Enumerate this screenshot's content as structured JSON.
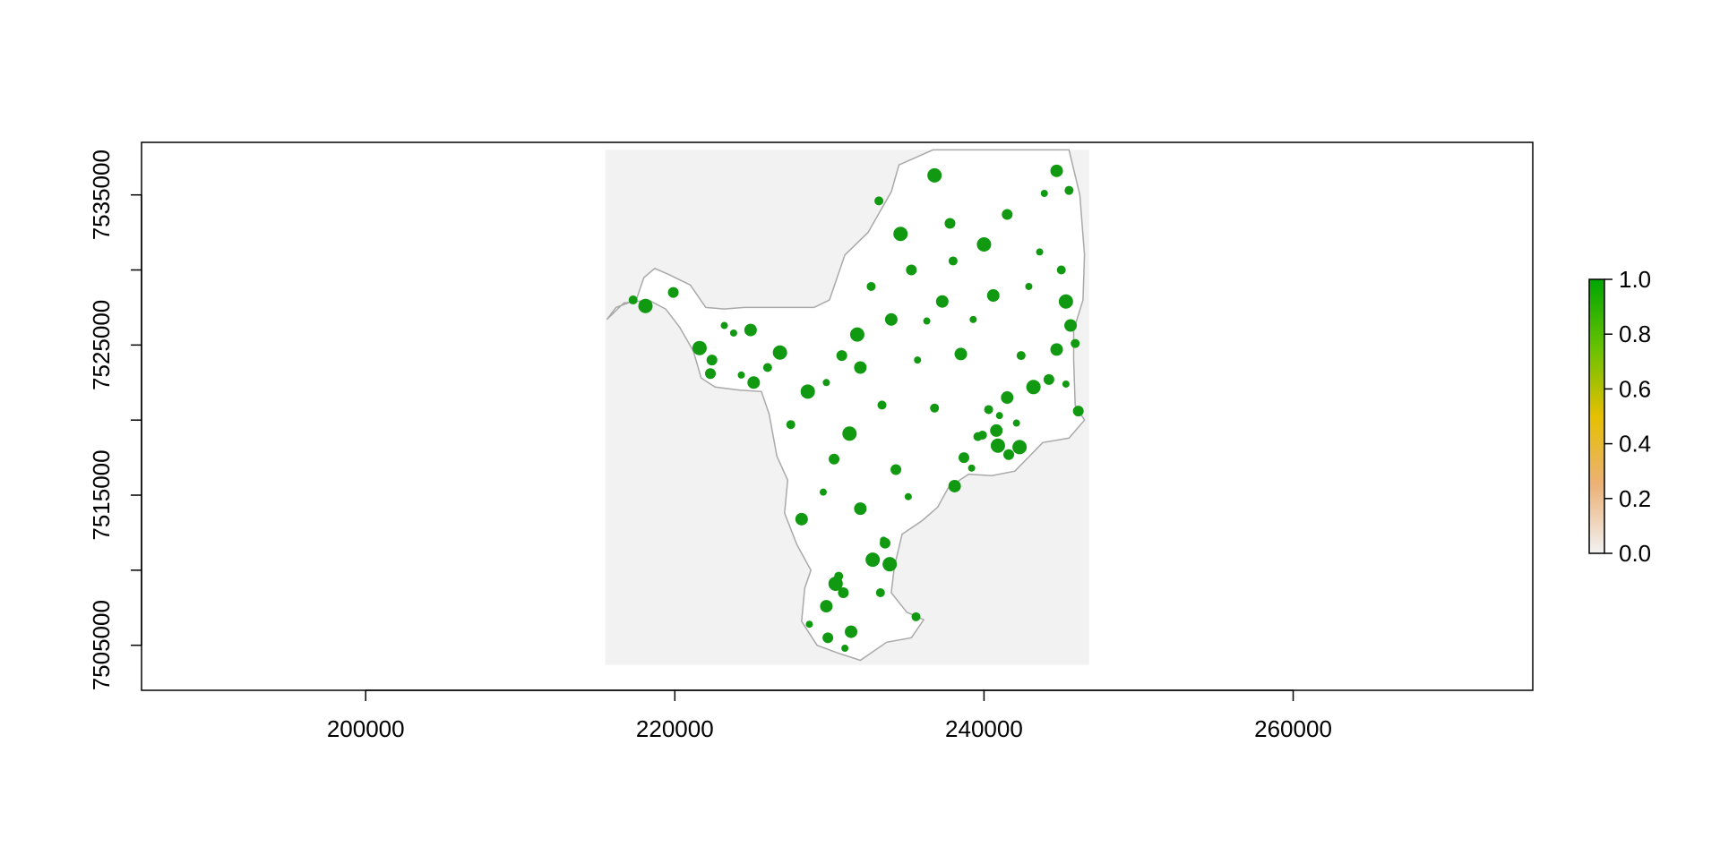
{
  "chart_data": {
    "type": "heatmap",
    "title": "",
    "xlabel": "",
    "ylabel": "",
    "xlim": [
      185500,
      275500
    ],
    "ylim": [
      7502000,
      7538500
    ],
    "x_ticks": [
      {
        "value": 200000,
        "label": "200000"
      },
      {
        "value": 220000,
        "label": "220000"
      },
      {
        "value": 240000,
        "label": "240000"
      },
      {
        "value": 260000,
        "label": "260000"
      }
    ],
    "y_ticks": [
      {
        "value": 7505000,
        "label": "7505000"
      },
      {
        "value": 7510000,
        "label": ""
      },
      {
        "value": 7515000,
        "label": "7515000"
      },
      {
        "value": 7520000,
        "label": ""
      },
      {
        "value": 7525000,
        "label": "7525000"
      },
      {
        "value": 7530000,
        "label": ""
      },
      {
        "value": 7535000,
        "label": "7535000"
      }
    ],
    "raster_extent": {
      "x": [
        215500,
        246800
      ],
      "y": [
        7503700,
        7538000
      ],
      "background_color": "#f2f2f2"
    },
    "boundary_outline": [
      [
        236700,
        7538000
      ],
      [
        245500,
        7538000
      ],
      [
        246200,
        7535000
      ],
      [
        246500,
        7531000
      ],
      [
        246400,
        7528000
      ],
      [
        245800,
        7526000
      ],
      [
        245800,
        7524000
      ],
      [
        245900,
        7521000
      ],
      [
        246500,
        7520000
      ],
      [
        245500,
        7518800
      ],
      [
        243800,
        7518500
      ],
      [
        242000,
        7516600
      ],
      [
        240500,
        7516300
      ],
      [
        239000,
        7516400
      ],
      [
        237700,
        7515500
      ],
      [
        237000,
        7514200
      ],
      [
        236000,
        7513300
      ],
      [
        234700,
        7512400
      ],
      [
        234200,
        7510200
      ],
      [
        234000,
        7508500
      ],
      [
        235000,
        7507200
      ],
      [
        236100,
        7506700
      ],
      [
        235300,
        7505500
      ],
      [
        233700,
        7505200
      ],
      [
        232000,
        7504000
      ],
      [
        230500,
        7504500
      ],
      [
        229200,
        7505000
      ],
      [
        228200,
        7506600
      ],
      [
        228400,
        7508800
      ],
      [
        228800,
        7510000
      ],
      [
        227900,
        7511700
      ],
      [
        227100,
        7513800
      ],
      [
        227300,
        7516000
      ],
      [
        226600,
        7517600
      ],
      [
        226100,
        7520400
      ],
      [
        225600,
        7521900
      ],
      [
        224200,
        7522000
      ],
      [
        222600,
        7522200
      ],
      [
        221700,
        7522800
      ],
      [
        221200,
        7524600
      ],
      [
        220300,
        7526200
      ],
      [
        219400,
        7527400
      ],
      [
        218300,
        7528000
      ],
      [
        216700,
        7527800
      ],
      [
        215600,
        7526700
      ],
      [
        216200,
        7527500
      ],
      [
        217500,
        7528000
      ],
      [
        218000,
        7529500
      ],
      [
        218700,
        7530100
      ],
      [
        219600,
        7529700
      ],
      [
        221000,
        7529000
      ],
      [
        222000,
        7527500
      ],
      [
        223200,
        7527400
      ],
      [
        224500,
        7527500
      ],
      [
        227000,
        7527500
      ],
      [
        229000,
        7527500
      ],
      [
        230000,
        7528000
      ],
      [
        231000,
        7531000
      ],
      [
        232500,
        7532500
      ],
      [
        234000,
        7535200
      ],
      [
        234500,
        7537000
      ],
      [
        236700,
        7538000
      ]
    ],
    "series": [
      {
        "x": [
          241000,
          240800,
          240300,
          240900,
          241600,
          242100,
          241500,
          239900,
          242300
        ],
        "y": [
          7520300,
          7519300,
          7520700,
          7518300,
          7517700,
          7519800,
          7521500,
          7519000,
          7518200
        ],
        "value": 1.0
      },
      {
        "x": [
          238700,
          239200,
          238100,
          239600
        ],
        "y": [
          7517500,
          7516800,
          7515600,
          7518900
        ],
        "value": 1.0
      },
      {
        "x": [
          221600,
          222400,
          223800,
          224900,
          226000,
          226800,
          222300,
          223200
        ],
        "y": [
          7524800,
          7524000,
          7525800,
          7526000,
          7523500,
          7524500,
          7523100,
          7526300
        ],
        "value": 1.0
      },
      {
        "x": [
          217300,
          218100,
          219900,
          224300,
          225100
        ],
        "y": [
          7528000,
          7527600,
          7528500,
          7523000,
          7522500
        ],
        "value": 1.0
      },
      {
        "x": [
          245600,
          245900,
          245300,
          246100,
          245300,
          244700,
          245000
        ],
        "y": [
          7526300,
          7525100,
          7527900,
          7520600,
          7522400,
          7524700,
          7530000
        ],
        "value": 1.0
      },
      {
        "x": [
          243900,
          244700,
          245500,
          240000,
          241500,
          242900
        ],
        "y": [
          7535100,
          7536600,
          7535300,
          7531700,
          7533700,
          7528900
        ],
        "value": 1.0
      },
      {
        "x": [
          229900,
          231000,
          231400,
          233300,
          232800,
          233600,
          228700,
          229800,
          230600
        ],
        "y": [
          7505500,
          7504800,
          7505900,
          7508500,
          7510700,
          7511800,
          7506400,
          7507600,
          7509600
        ],
        "value": 1.0
      },
      {
        "x": [
          230400,
          230900,
          233500,
          232000,
          235600,
          233900
        ],
        "y": [
          7509100,
          7508500,
          7512000,
          7514100,
          7506900,
          7510400
        ],
        "value": 1.0
      },
      {
        "x": [
          233200,
          234600,
          235300,
          236300,
          237300,
          238000,
          236800,
          237800,
          235700
        ],
        "y": [
          7534600,
          7532400,
          7530000,
          7526600,
          7527900,
          7530600,
          7536300,
          7533100,
          7524000
        ],
        "value": 1.0
      },
      {
        "x": [
          232000,
          233400,
          231300,
          230300,
          229600,
          228200,
          227500,
          228600
        ],
        "y": [
          7523500,
          7521000,
          7519100,
          7517400,
          7515200,
          7513400,
          7519700,
          7521900
        ],
        "value": 1.0
      },
      {
        "x": [
          239300,
          240600,
          242400,
          243200,
          244200,
          243600,
          238500,
          236800
        ],
        "y": [
          7526700,
          7528300,
          7524300,
          7522200,
          7522700,
          7531200,
          7524400,
          7520800
        ],
        "value": 1.0
      },
      {
        "x": [
          234300,
          235100,
          234000,
          232700,
          231800,
          230800,
          229800
        ],
        "y": [
          7516700,
          7514900,
          7526700,
          7528900,
          7525700,
          7524300,
          7522500
        ],
        "value": 1.0
      }
    ],
    "color_scale": {
      "type": "continuous",
      "range": [
        0.0,
        1.0
      ],
      "ticks": [
        {
          "value": 0.0,
          "label": "0.0"
        },
        {
          "value": 0.2,
          "label": "0.2"
        },
        {
          "value": 0.4,
          "label": "0.4"
        },
        {
          "value": 0.6,
          "label": "0.6"
        },
        {
          "value": 0.8,
          "label": "0.8"
        },
        {
          "value": 1.0,
          "label": "1.0"
        }
      ],
      "stops": [
        "#f2f2f2",
        "#ecb176",
        "#e6c000",
        "#67c200",
        "#00a600"
      ]
    },
    "legend_position": "right",
    "colors": {
      "presence": "#119a11",
      "boundary": "#a9a9a9",
      "axis": "#000000",
      "plot_background": "#ffffff"
    }
  }
}
